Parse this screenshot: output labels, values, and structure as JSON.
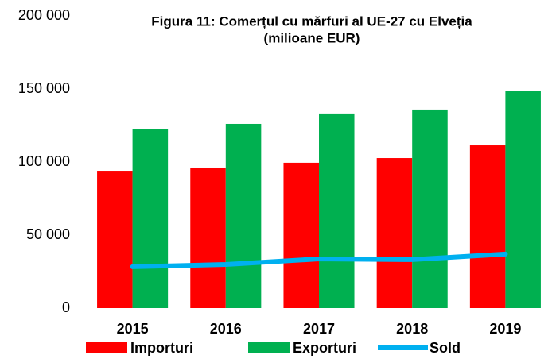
{
  "chart_data": {
    "type": "bar",
    "title": "Figura 11: Comerțul cu mărfuri al UE-27 cu Elveția",
    "subtitle": "(milioane EUR)",
    "categories": [
      "2015",
      "2016",
      "2017",
      "2018",
      "2019"
    ],
    "series": [
      {
        "name": "Importuri",
        "color": "#ff0000",
        "type": "bar",
        "values": [
          94000,
          96200,
          99500,
          102700,
          111400
        ]
      },
      {
        "name": "Exporturi",
        "color": "#00b050",
        "type": "bar",
        "values": [
          122300,
          126100,
          133200,
          135900,
          148400
        ]
      },
      {
        "name": "Sold",
        "color": "#00b0f0",
        "type": "line",
        "values": [
          28300,
          29900,
          33700,
          33200,
          37000
        ]
      }
    ],
    "ylim": [
      0,
      200000
    ],
    "yticks": [
      0,
      {
        "value": 50000,
        "label": "50 000"
      },
      {
        "value": 100000,
        "label": "100 000"
      },
      {
        "value": 150000,
        "label": "150 000"
      },
      {
        "value": 200000,
        "label": "200 000"
      }
    ],
    "grid": false,
    "legend": "bottom"
  }
}
